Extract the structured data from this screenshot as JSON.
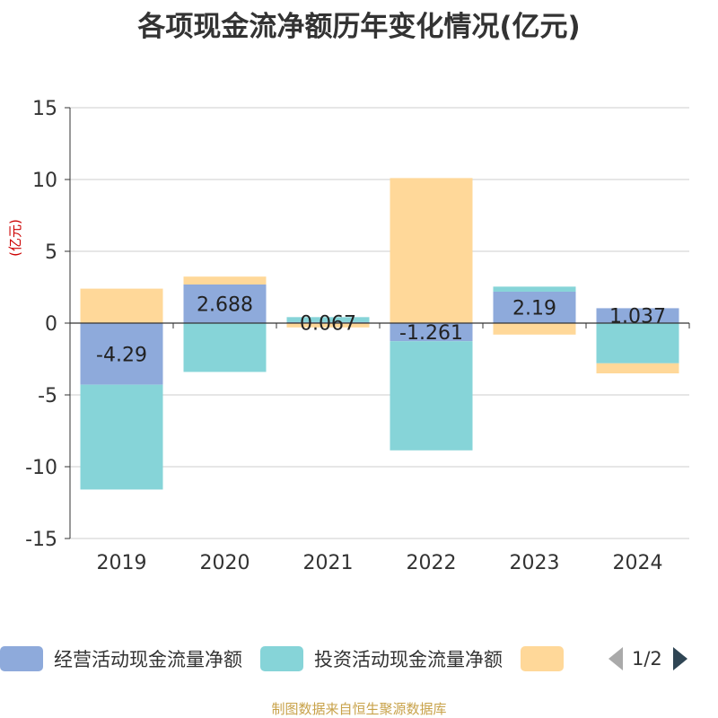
{
  "title": "各项现金流净额历年变化情况(亿元)",
  "source": "制图数据来自恒生聚源数据库",
  "legend_pager": "1/2",
  "chart_data": {
    "type": "bar",
    "stacked": true,
    "title": "各项现金流净额历年变化情况(亿元)",
    "ylabel": "(亿元)",
    "ylim": [
      -15,
      15
    ],
    "yticks": [
      15,
      10,
      5,
      0,
      -5,
      -10,
      -15
    ],
    "categories": [
      "2019",
      "2020",
      "2021",
      "2022",
      "2023",
      "2024"
    ],
    "grid": true,
    "legend_position": "bottom",
    "series": [
      {
        "name": "经营活动现金流量净额",
        "color": "#8eaadb",
        "values": [
          -4.29,
          2.688,
          0.067,
          -1.261,
          2.19,
          1.037
        ],
        "labels": [
          "-4.29",
          "2.688",
          "0.067",
          "-1.261",
          "2.19",
          "1.037"
        ]
      },
      {
        "name": "投资活动现金流量净额",
        "color": "#86d4d8",
        "values": [
          -7.3,
          -3.4,
          0.35,
          -7.6,
          0.35,
          -2.8
        ]
      },
      {
        "name": "",
        "color": "#ffd899",
        "values": [
          2.4,
          0.55,
          -0.3,
          10.1,
          -0.8,
          -0.7
        ]
      }
    ]
  }
}
